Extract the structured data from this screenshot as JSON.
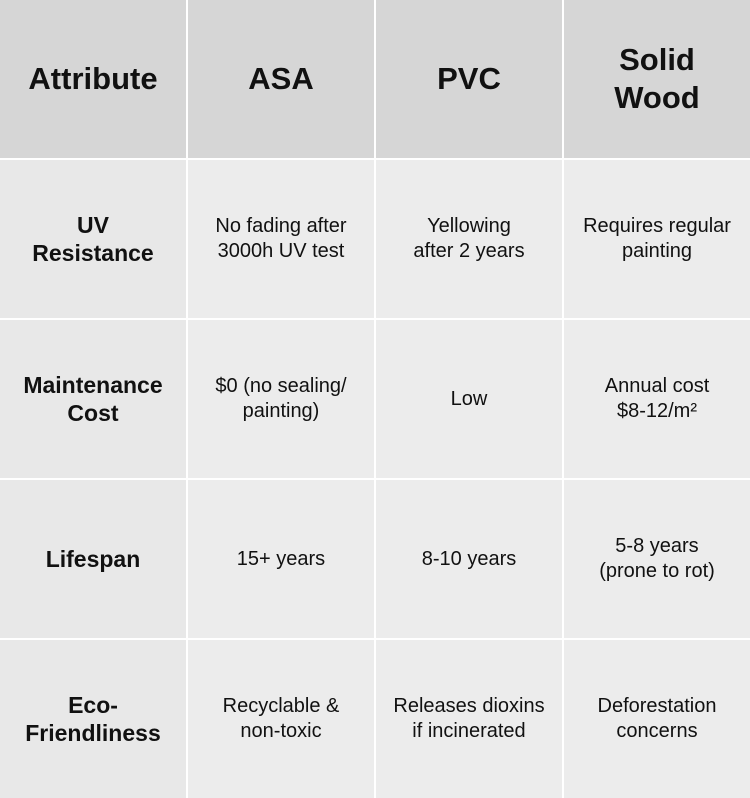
{
  "table": {
    "headers": [
      "Attribute",
      "ASA",
      "PVC",
      "Solid\nWood"
    ],
    "rows": [
      {
        "label": "UV\nResistance",
        "cells": [
          "No fading after\n3000h UV test",
          "Yellowing\nafter 2 years",
          "Requires regular\npainting"
        ]
      },
      {
        "label": "Maintenance\nCost",
        "cells": [
          "$0 (no sealing/\npainting)",
          "Low",
          "Annual cost\n$8-12/m²"
        ]
      },
      {
        "label": "Lifespan",
        "cells": [
          "15+ years",
          "8-10 years",
          "5-8 years\n(prone to rot)"
        ]
      },
      {
        "label": "Eco-\nFriendliness",
        "cells": [
          "Recyclable &\nnon-toxic",
          "Releases dioxins\nif incinerated",
          "Deforestation\nconcerns"
        ]
      }
    ]
  },
  "colors": {
    "header_bg": "#d6d6d6",
    "cell_bg": "#ececec",
    "grid_line": "#ffffff",
    "text": "#111111"
  }
}
